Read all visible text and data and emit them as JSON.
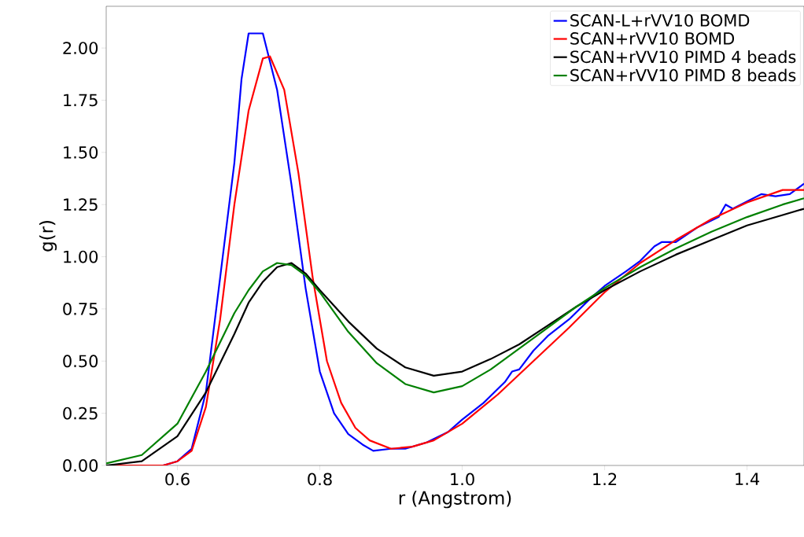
{
  "chart_data": {
    "type": "line",
    "xlabel": "r (Angstrom)",
    "ylabel": "g(r)",
    "xlim": [
      0.5,
      1.48
    ],
    "ylim": [
      0,
      2.2
    ],
    "xticks": [
      0.6,
      0.8,
      {
        "value": 1.0,
        "label": "1.0"
      },
      1.2,
      1.4
    ],
    "yticks": [
      {
        "value": 0,
        "label": "0.00"
      },
      {
        "value": 0.25,
        "label": "0.25"
      },
      {
        "value": 0.5,
        "label": "0.50"
      },
      {
        "value": 0.75,
        "label": "0.75"
      },
      {
        "value": 1.0,
        "label": "1.00"
      },
      {
        "value": 1.25,
        "label": "1.25"
      },
      {
        "value": 1.5,
        "label": "1.50"
      },
      {
        "value": 1.75,
        "label": "1.75"
      },
      {
        "value": 2.0,
        "label": "2.00"
      }
    ],
    "legend": "top right",
    "grid": false,
    "marker": "none",
    "line_style": "solid",
    "series": [
      {
        "name": "SCAN-L+rVV10 BOMD",
        "color": "#0000ff",
        "x": [
          0.5,
          0.58,
          0.6,
          0.62,
          0.64,
          0.66,
          0.68,
          0.69,
          0.7,
          0.72,
          0.74,
          0.76,
          0.78,
          0.8,
          0.82,
          0.84,
          0.86,
          0.875,
          0.9,
          0.92,
          0.95,
          0.98,
          1.0,
          1.03,
          1.06,
          1.07,
          1.08,
          1.1,
          1.12,
          1.15,
          1.18,
          1.2,
          1.23,
          1.25,
          1.27,
          1.28,
          1.3,
          1.33,
          1.36,
          1.37,
          1.38,
          1.42,
          1.44,
          1.46,
          1.48
        ],
        "values": [
          0,
          0,
          0.02,
          0.08,
          0.35,
          0.9,
          1.45,
          1.85,
          2.07,
          2.07,
          1.8,
          1.35,
          0.85,
          0.45,
          0.25,
          0.15,
          0.1,
          0.07,
          0.08,
          0.08,
          0.11,
          0.16,
          0.22,
          0.3,
          0.4,
          0.45,
          0.46,
          0.55,
          0.62,
          0.7,
          0.8,
          0.86,
          0.93,
          0.98,
          1.05,
          1.07,
          1.07,
          1.14,
          1.19,
          1.25,
          1.23,
          1.3,
          1.29,
          1.3,
          1.35
        ]
      },
      {
        "name": "SCAN+rVV10 BOMD",
        "color": "#ff0000",
        "x": [
          0.5,
          0.58,
          0.6,
          0.62,
          0.64,
          0.66,
          0.68,
          0.7,
          0.72,
          0.73,
          0.75,
          0.77,
          0.79,
          0.81,
          0.83,
          0.85,
          0.87,
          0.9,
          0.93,
          0.96,
          1.0,
          1.05,
          1.1,
          1.15,
          1.2,
          1.25,
          1.3,
          1.35,
          1.4,
          1.45,
          1.48
        ],
        "values": [
          0,
          0,
          0.02,
          0.07,
          0.28,
          0.7,
          1.25,
          1.7,
          1.95,
          1.96,
          1.8,
          1.4,
          0.9,
          0.5,
          0.3,
          0.18,
          0.12,
          0.08,
          0.09,
          0.12,
          0.2,
          0.34,
          0.5,
          0.66,
          0.83,
          0.97,
          1.08,
          1.18,
          1.26,
          1.32,
          1.32
        ]
      },
      {
        "name": "SCAN+rVV10 PIMD 4 beads",
        "color": "#000000",
        "x": [
          0.5,
          0.55,
          0.6,
          0.64,
          0.68,
          0.7,
          0.72,
          0.74,
          0.76,
          0.78,
          0.8,
          0.84,
          0.88,
          0.92,
          0.96,
          1.0,
          1.04,
          1.08,
          1.12,
          1.16,
          1.2,
          1.25,
          1.3,
          1.35,
          1.4,
          1.45,
          1.48
        ],
        "values": [
          0,
          0.02,
          0.14,
          0.35,
          0.63,
          0.78,
          0.88,
          0.95,
          0.97,
          0.92,
          0.84,
          0.69,
          0.56,
          0.47,
          0.43,
          0.45,
          0.51,
          0.58,
          0.67,
          0.76,
          0.84,
          0.93,
          1.01,
          1.08,
          1.15,
          1.2,
          1.23
        ]
      },
      {
        "name": "SCAN+rVV10 PIMD 8 beads",
        "color": "#008000",
        "x": [
          0.5,
          0.55,
          0.6,
          0.64,
          0.68,
          0.7,
          0.72,
          0.74,
          0.76,
          0.78,
          0.8,
          0.84,
          0.88,
          0.92,
          0.96,
          1.0,
          1.04,
          1.08,
          1.12,
          1.16,
          1.2,
          1.25,
          1.3,
          1.35,
          1.4,
          1.45,
          1.48
        ],
        "values": [
          0.01,
          0.05,
          0.2,
          0.45,
          0.73,
          0.84,
          0.93,
          0.97,
          0.96,
          0.91,
          0.83,
          0.64,
          0.49,
          0.39,
          0.35,
          0.38,
          0.46,
          0.56,
          0.66,
          0.76,
          0.85,
          0.95,
          1.04,
          1.12,
          1.19,
          1.25,
          1.28
        ]
      }
    ]
  }
}
